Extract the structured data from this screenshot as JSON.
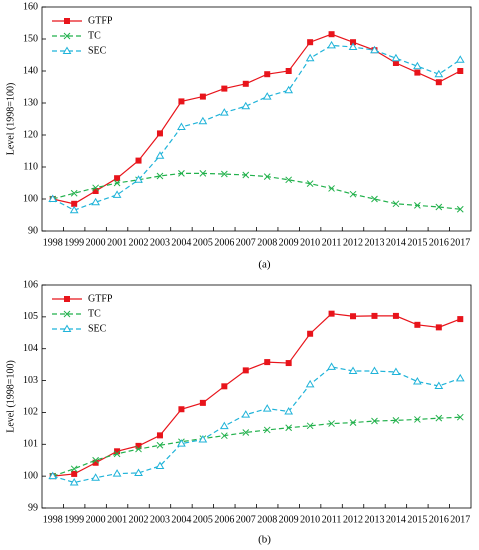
{
  "chart_data": [
    {
      "type": "line",
      "caption": "(a)",
      "ylabel": "Level (1998=100)",
      "categories": [
        "1998",
        "1999",
        "2000",
        "2001",
        "2002",
        "2003",
        "2004",
        "2005",
        "2006",
        "2007",
        "2008",
        "2009",
        "2010",
        "2011",
        "2012",
        "2013",
        "2014",
        "2015",
        "2016",
        "2017"
      ],
      "ylim": [
        90,
        160
      ],
      "yticks": [
        90,
        100,
        110,
        120,
        130,
        140,
        150,
        160
      ],
      "legend": "upper left",
      "series": [
        {
          "name": "GTFP",
          "color": "#e8141b",
          "marker": "square",
          "dashed": false,
          "values": [
            100,
            98.5,
            102.5,
            106.5,
            112,
            120.5,
            130.5,
            132,
            134.5,
            136,
            139,
            140,
            149,
            151.5,
            149,
            146.5,
            142.5,
            139.5,
            136.5,
            140
          ]
        },
        {
          "name": "TC",
          "color": "#22b14c",
          "marker": "x",
          "dashed": true,
          "values": [
            100,
            101.8,
            103.5,
            105,
            106,
            107.2,
            108,
            108,
            107.8,
            107.5,
            107,
            106,
            104.8,
            103.3,
            101.5,
            100,
            98.5,
            98,
            97.5,
            96.8
          ]
        },
        {
          "name": "SEC",
          "color": "#1fb3d9",
          "marker": "triangle",
          "dashed": true,
          "values": [
            100,
            96.5,
            99,
            101.3,
            106,
            113.5,
            122.5,
            124.3,
            127,
            129,
            132,
            134,
            144,
            148,
            147.5,
            146.5,
            144,
            141.5,
            139,
            143.5
          ]
        }
      ]
    },
    {
      "type": "line",
      "caption": "(b)",
      "ylabel": "Level (1998=100)",
      "categories": [
        "1998",
        "1999",
        "2000",
        "2001",
        "2002",
        "2003",
        "2004",
        "2005",
        "2006",
        "2007",
        "2008",
        "2009",
        "2010",
        "2011",
        "2012",
        "2013",
        "2014",
        "2015",
        "2016",
        "2017"
      ],
      "ylim": [
        99,
        106
      ],
      "yticks": [
        99,
        100,
        101,
        102,
        103,
        104,
        105,
        106
      ],
      "legend": "upper left",
      "series": [
        {
          "name": "GTFP",
          "color": "#e8141b",
          "marker": "square",
          "dashed": false,
          "values": [
            100,
            100.07,
            100.42,
            100.78,
            100.95,
            101.28,
            102.1,
            102.3,
            102.82,
            103.32,
            103.58,
            103.55,
            104.47,
            105.1,
            105.02,
            105.03,
            105.03,
            104.75,
            104.67,
            104.93
          ]
        },
        {
          "name": "TC",
          "color": "#22b14c",
          "marker": "x",
          "dashed": true,
          "values": [
            100,
            100.23,
            100.5,
            100.7,
            100.85,
            100.97,
            101.08,
            101.18,
            101.27,
            101.37,
            101.45,
            101.52,
            101.58,
            101.65,
            101.68,
            101.73,
            101.75,
            101.78,
            101.82,
            101.85
          ]
        },
        {
          "name": "SEC",
          "color": "#1fb3d9",
          "marker": "triangle",
          "dashed": true,
          "values": [
            100,
            99.8,
            99.95,
            100.08,
            100.1,
            100.32,
            101.02,
            101.15,
            101.57,
            101.93,
            102.12,
            102.03,
            102.88,
            103.43,
            103.3,
            103.3,
            103.27,
            102.97,
            102.83,
            103.07
          ]
        }
      ]
    }
  ]
}
